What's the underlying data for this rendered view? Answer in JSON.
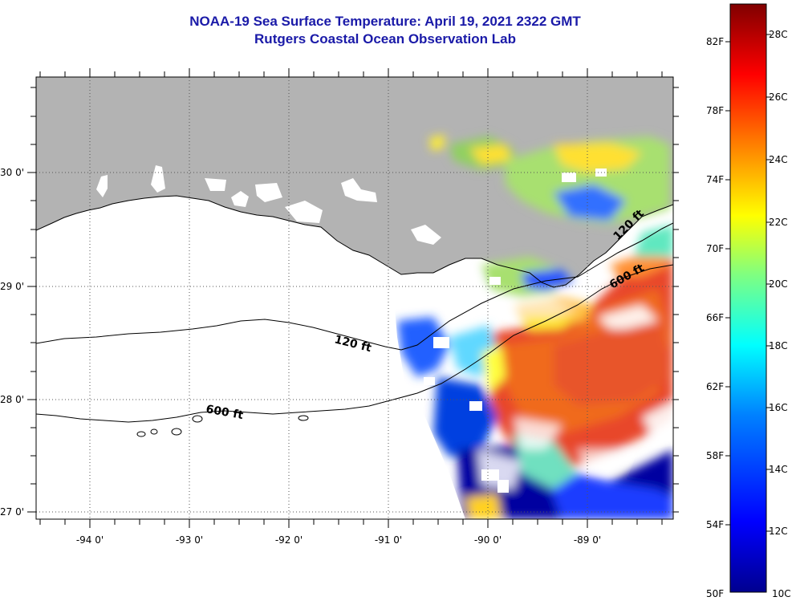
{
  "title": {
    "line1": "NOAA-19 Sea Surface Temperature:  April 19, 2021 2322 GMT",
    "line2": "Rutgers Coastal Ocean Observation Lab"
  },
  "map": {
    "lat_labels": [
      "30 0'",
      "29 0'",
      "28 0'",
      "27 0'"
    ],
    "lon_labels": [
      "-94 0'",
      "-93 0'",
      "-92 0'",
      "-91 0'",
      "-90 0'",
      "-89 0'"
    ],
    "contours": [
      {
        "name": "isobath-120ft",
        "label": "120 ft"
      },
      {
        "name": "isobath-600ft",
        "label": "600 ft"
      },
      {
        "name": "isobath-120ft-east",
        "label": "120 ft"
      },
      {
        "name": "isobath-600ft-east",
        "label": "600 ft"
      }
    ],
    "colors": {
      "land": "#b3b3b3",
      "no_data": "#ffffff",
      "frame": "#000000"
    }
  },
  "colorbar": {
    "fahrenheit_labels": [
      "82F",
      "78F",
      "74F",
      "70F",
      "66F",
      "62F",
      "58F",
      "54F",
      "50F"
    ],
    "celsius_labels": [
      "28C",
      "26C",
      "24C",
      "22C",
      "20C",
      "18C",
      "16C",
      "14C",
      "12C",
      "10C"
    ],
    "colormap": [
      "#00008f",
      "#0000ff",
      "#0080ff",
      "#00ffff",
      "#80ff80",
      "#ffff00",
      "#ff8000",
      "#ff0000",
      "#800000"
    ]
  }
}
